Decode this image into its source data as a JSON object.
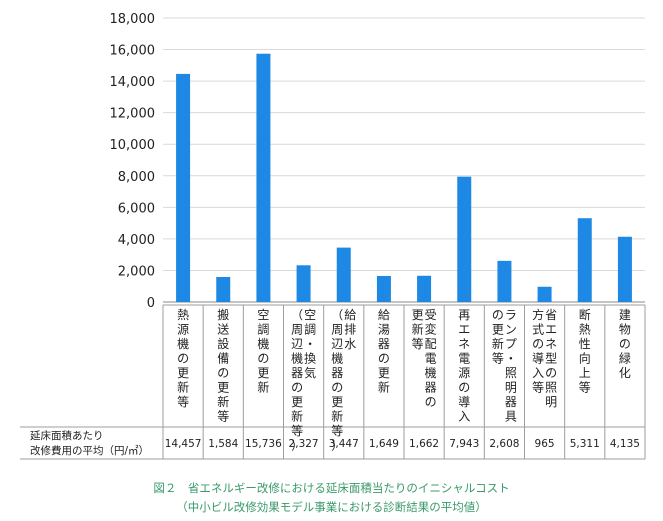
{
  "chart_data": {
    "type": "bar",
    "categories": [
      "熱源機の更新等",
      "搬送設備の更新等",
      "空調機の更新",
      "空調・換気（周辺機器の更新等）",
      "給排水（周辺機器の更新等）",
      "給湯器の更新",
      "受変配電機器の更新等",
      "再エネ電源の導入",
      "ランプ・照明器具の更新等",
      "省エネ型の照明方式の導入等",
      "断熱性向上等",
      "建物の緑化"
    ],
    "category_lines": [
      [
        "熱源機の更新等"
      ],
      [
        "搬送設備の更新等"
      ],
      [
        "空調機の更新"
      ],
      [
        "空調・換気",
        "（周辺機器の更新等）"
      ],
      [
        "給排水",
        "（周辺機器の更新等）"
      ],
      [
        "給湯器の更新"
      ],
      [
        "受変配電機器の",
        "更新等"
      ],
      [
        "再エネ電源の導入"
      ],
      [
        "ランプ・照明器具",
        "の更新等"
      ],
      [
        "省エネ型の照明",
        "方式の導入等"
      ],
      [
        "断熱性向上等"
      ],
      [
        "建物の緑化"
      ]
    ],
    "values": [
      14457,
      1584,
      15736,
      2327,
      3447,
      1649,
      1662,
      7943,
      2608,
      965,
      5311,
      4135
    ],
    "value_labels": [
      "14,457",
      "1,584",
      "15,736",
      "2,327",
      "3,447",
      "1,649",
      "1,662",
      "7,943",
      "2,608",
      "965",
      "5,311",
      "4,135"
    ],
    "yticks": [
      "0",
      "2,000",
      "4,000",
      "6,000",
      "8,000",
      "10,000",
      "12,000",
      "14,000",
      "16,000",
      "18,000"
    ],
    "ylim": [
      0,
      18000
    ],
    "row_label": [
      "延床面積あたり",
      "改修費用の平均（円/㎡）"
    ],
    "caption_line1": "図２　省エネルギー改修における延床面積当たりのイニシャルコスト",
    "caption_line2": "（中小ビル改修効果モデル事業における診断結果の平均値）",
    "colors": {
      "bar": "#1e88e5",
      "grid": "#d9d9d9",
      "caption": "#3a9a6a",
      "text": "#222222"
    }
  }
}
